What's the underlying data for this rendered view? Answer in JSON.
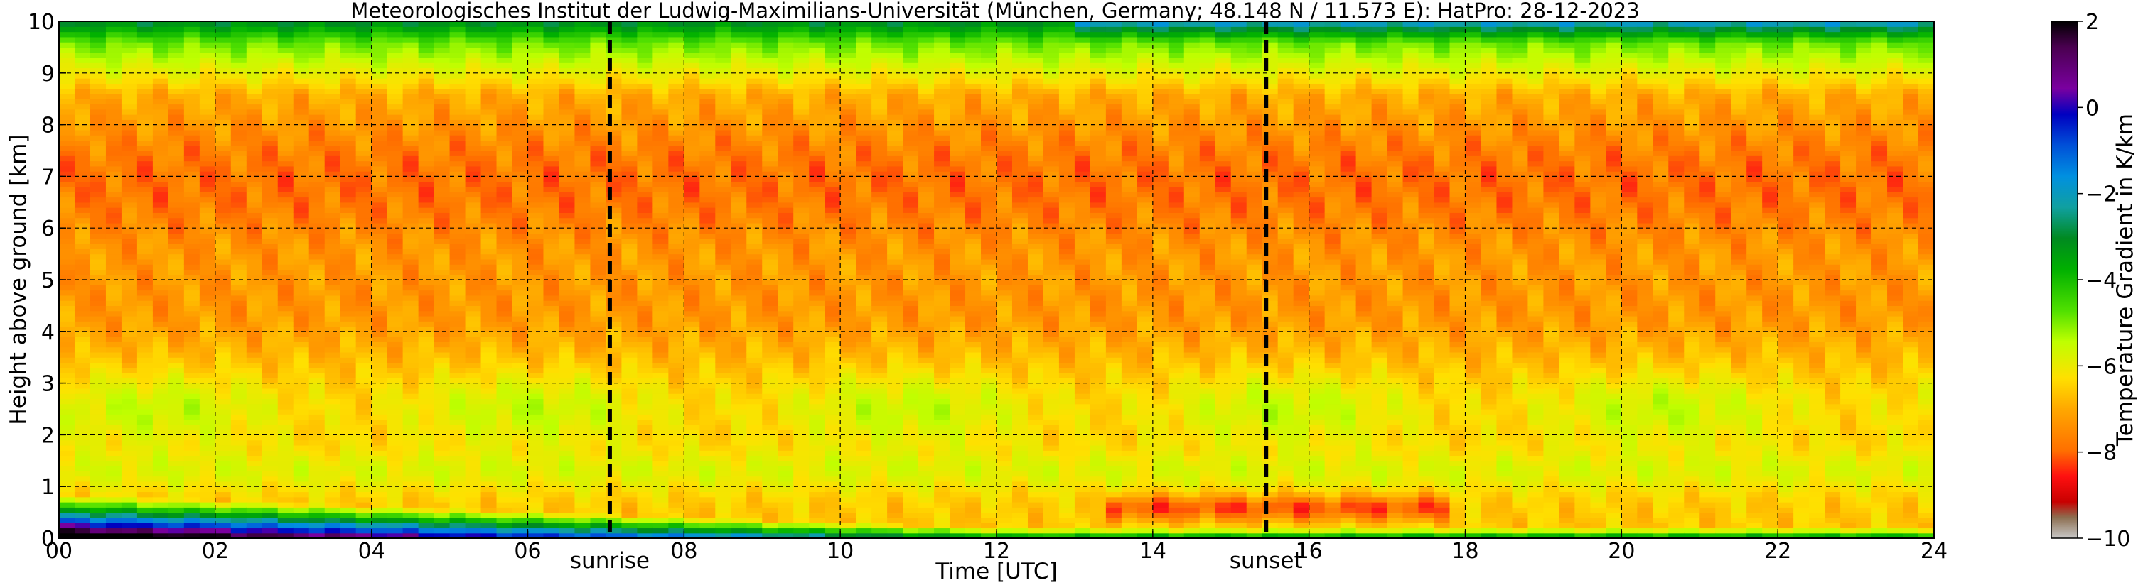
{
  "chart_data": {
    "type": "heatmap",
    "title": "Meteorologisches Institut der Ludwig-Maximilians-Universität (München, Germany; 48.148 N / 11.573 E):    HatPro: 28-12-2023",
    "xlabel": "Time [UTC]",
    "ylabel": "Height above ground [km]",
    "xlim": [
      0,
      24
    ],
    "ylim": [
      0,
      10
    ],
    "x_ticks": [
      "00",
      "02",
      "04",
      "06",
      "08",
      "10",
      "12",
      "14",
      "16",
      "18",
      "20",
      "22",
      "24"
    ],
    "y_ticks": [
      "0",
      "1",
      "2",
      "3",
      "4",
      "5",
      "6",
      "7",
      "8",
      "9",
      "10"
    ],
    "grid": true,
    "annotations": [
      {
        "label": "sunrise",
        "x": 7.05
      },
      {
        "label": "sunset",
        "x": 15.45
      }
    ],
    "colorbar": {
      "label": "Temperature Gradient in K/km",
      "range": [
        -10,
        2
      ],
      "ticks": [
        "2",
        "0",
        "−2",
        "−4",
        "−6",
        "−8",
        "−10"
      ]
    },
    "approx_profile_by_height_km": [
      {
        "height": 0.1,
        "value_night": 1.5,
        "value_day": -6.5
      },
      {
        "height": 0.5,
        "value_night": -1.0,
        "value_day": -7.5
      },
      {
        "height": 1.0,
        "value_night": -6.5,
        "value_day": -7.0
      },
      {
        "height": 2.5,
        "value_night": -6.0,
        "value_day": -5.5
      },
      {
        "height": 4.0,
        "value_night": -7.0,
        "value_day": -7.0
      },
      {
        "height": 6.5,
        "value_night": -7.8,
        "value_day": -7.6
      },
      {
        "height": 9.0,
        "value_night": -6.3,
        "value_day": -6.0
      },
      {
        "height": 9.8,
        "value_night": -4.5,
        "value_day": -3.0
      }
    ]
  }
}
